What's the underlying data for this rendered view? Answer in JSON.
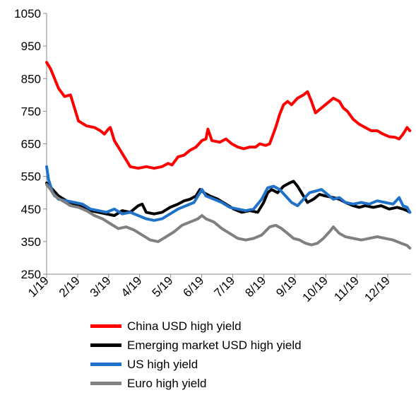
{
  "chart_data": {
    "type": "line",
    "title": "",
    "xlabel": "",
    "ylabel": "",
    "ylim": [
      250,
      1050
    ],
    "y_ticks": [
      "1050",
      "950",
      "850",
      "750",
      "650",
      "550",
      "450",
      "350",
      "250"
    ],
    "x_ticks": [
      "1/19",
      "2/19",
      "3/19",
      "4/19",
      "5/19",
      "6/19",
      "7/19",
      "8/19",
      "9/19",
      "10/19",
      "11/19",
      "12/19"
    ],
    "grid": false,
    "legend_position": "bottom",
    "series": [
      {
        "name": "China USD high yield",
        "color": "#ff0000",
        "values": [
          [
            0,
            900
          ],
          [
            0.1,
            880
          ],
          [
            0.2,
            850
          ],
          [
            0.3,
            820
          ],
          [
            0.45,
            795
          ],
          [
            0.6,
            800
          ],
          [
            0.7,
            760
          ],
          [
            0.8,
            720
          ],
          [
            1.0,
            705
          ],
          [
            1.2,
            700
          ],
          [
            1.35,
            690
          ],
          [
            1.45,
            680
          ],
          [
            1.55,
            695
          ],
          [
            1.6,
            700
          ],
          [
            1.7,
            660
          ],
          [
            1.8,
            640
          ],
          [
            1.9,
            620
          ],
          [
            2.0,
            600
          ],
          [
            2.1,
            580
          ],
          [
            2.3,
            575
          ],
          [
            2.5,
            580
          ],
          [
            2.7,
            575
          ],
          [
            2.9,
            580
          ],
          [
            3.05,
            590
          ],
          [
            3.15,
            585
          ],
          [
            3.3,
            610
          ],
          [
            3.45,
            615
          ],
          [
            3.6,
            630
          ],
          [
            3.75,
            640
          ],
          [
            3.9,
            660
          ],
          [
            4.0,
            665
          ],
          [
            4.05,
            695
          ],
          [
            4.15,
            660
          ],
          [
            4.35,
            655
          ],
          [
            4.5,
            665
          ],
          [
            4.65,
            650
          ],
          [
            4.8,
            640
          ],
          [
            4.95,
            635
          ],
          [
            5.1,
            640
          ],
          [
            5.25,
            640
          ],
          [
            5.35,
            650
          ],
          [
            5.5,
            645
          ],
          [
            5.6,
            650
          ],
          [
            5.75,
            700
          ],
          [
            5.85,
            740
          ],
          [
            5.95,
            770
          ],
          [
            6.05,
            780
          ],
          [
            6.15,
            770
          ],
          [
            6.3,
            790
          ],
          [
            6.45,
            800
          ],
          [
            6.55,
            810
          ],
          [
            6.65,
            780
          ],
          [
            6.75,
            745
          ],
          [
            6.9,
            760
          ],
          [
            7.05,
            775
          ],
          [
            7.2,
            790
          ],
          [
            7.35,
            780
          ],
          [
            7.45,
            760
          ],
          [
            7.55,
            750
          ],
          [
            7.7,
            725
          ],
          [
            7.85,
            710
          ],
          [
            8.0,
            700
          ],
          [
            8.15,
            690
          ],
          [
            8.3,
            690
          ],
          [
            8.45,
            680
          ],
          [
            8.6,
            672
          ],
          [
            8.75,
            670
          ],
          [
            8.85,
            665
          ],
          [
            8.95,
            680
          ],
          [
            9.05,
            700
          ],
          [
            9.12,
            690
          ]
        ]
      },
      {
        "name": "Emerging market USD high yield",
        "color": "#000000",
        "values": [
          [
            0,
            530
          ],
          [
            0.15,
            510
          ],
          [
            0.3,
            490
          ],
          [
            0.5,
            475
          ],
          [
            0.7,
            465
          ],
          [
            0.9,
            455
          ],
          [
            1.1,
            445
          ],
          [
            1.3,
            440
          ],
          [
            1.5,
            435
          ],
          [
            1.7,
            430
          ],
          [
            1.9,
            445
          ],
          [
            2.1,
            440
          ],
          [
            2.3,
            460
          ],
          [
            2.4,
            465
          ],
          [
            2.5,
            440
          ],
          [
            2.7,
            435
          ],
          [
            2.9,
            440
          ],
          [
            3.1,
            455
          ],
          [
            3.3,
            465
          ],
          [
            3.45,
            475
          ],
          [
            3.6,
            480
          ],
          [
            3.75,
            490
          ],
          [
            3.85,
            510
          ],
          [
            3.95,
            500
          ],
          [
            4.1,
            490
          ],
          [
            4.3,
            480
          ],
          [
            4.5,
            465
          ],
          [
            4.7,
            450
          ],
          [
            4.9,
            440
          ],
          [
            5.1,
            445
          ],
          [
            5.3,
            440
          ],
          [
            5.45,
            470
          ],
          [
            5.55,
            500
          ],
          [
            5.65,
            510
          ],
          [
            5.8,
            500
          ],
          [
            5.95,
            520
          ],
          [
            6.1,
            530
          ],
          [
            6.2,
            535
          ],
          [
            6.3,
            520
          ],
          [
            6.45,
            490
          ],
          [
            6.55,
            470
          ],
          [
            6.7,
            480
          ],
          [
            6.85,
            495
          ],
          [
            7.0,
            490
          ],
          [
            7.2,
            485
          ],
          [
            7.35,
            480
          ],
          [
            7.5,
            470
          ],
          [
            7.7,
            460
          ],
          [
            7.85,
            455
          ],
          [
            8.0,
            460
          ],
          [
            8.2,
            455
          ],
          [
            8.4,
            460
          ],
          [
            8.6,
            450
          ],
          [
            8.8,
            455
          ],
          [
            8.95,
            450
          ],
          [
            9.05,
            445
          ],
          [
            9.12,
            440
          ]
        ]
      },
      {
        "name": "US high yield",
        "color": "#1f72c8",
        "values": [
          [
            0,
            580
          ],
          [
            0.05,
            540
          ],
          [
            0.15,
            500
          ],
          [
            0.3,
            480
          ],
          [
            0.5,
            475
          ],
          [
            0.7,
            470
          ],
          [
            0.9,
            465
          ],
          [
            1.1,
            450
          ],
          [
            1.3,
            445
          ],
          [
            1.5,
            440
          ],
          [
            1.7,
            450
          ],
          [
            1.9,
            435
          ],
          [
            2.1,
            440
          ],
          [
            2.3,
            430
          ],
          [
            2.5,
            420
          ],
          [
            2.7,
            415
          ],
          [
            2.9,
            420
          ],
          [
            3.1,
            435
          ],
          [
            3.3,
            450
          ],
          [
            3.5,
            460
          ],
          [
            3.7,
            470
          ],
          [
            3.85,
            500
          ],
          [
            3.9,
            510
          ],
          [
            4.0,
            490
          ],
          [
            4.2,
            480
          ],
          [
            4.4,
            470
          ],
          [
            4.6,
            455
          ],
          [
            4.8,
            450
          ],
          [
            5.0,
            445
          ],
          [
            5.2,
            450
          ],
          [
            5.4,
            480
          ],
          [
            5.55,
            515
          ],
          [
            5.7,
            520
          ],
          [
            5.85,
            510
          ],
          [
            6.0,
            490
          ],
          [
            6.15,
            470
          ],
          [
            6.3,
            460
          ],
          [
            6.45,
            480
          ],
          [
            6.6,
            500
          ],
          [
            6.75,
            505
          ],
          [
            6.9,
            510
          ],
          [
            7.05,
            495
          ],
          [
            7.2,
            480
          ],
          [
            7.35,
            485
          ],
          [
            7.5,
            470
          ],
          [
            7.7,
            465
          ],
          [
            7.9,
            470
          ],
          [
            8.1,
            465
          ],
          [
            8.3,
            475
          ],
          [
            8.5,
            470
          ],
          [
            8.7,
            465
          ],
          [
            8.85,
            485
          ],
          [
            8.95,
            460
          ],
          [
            9.05,
            455
          ],
          [
            9.12,
            440
          ]
        ]
      },
      {
        "name": "Euro high yield",
        "color": "#808080",
        "values": [
          [
            0,
            525
          ],
          [
            0.1,
            510
          ],
          [
            0.2,
            490
          ],
          [
            0.4,
            475
          ],
          [
            0.6,
            460
          ],
          [
            0.8,
            455
          ],
          [
            1.0,
            445
          ],
          [
            1.2,
            430
          ],
          [
            1.4,
            420
          ],
          [
            1.6,
            405
          ],
          [
            1.8,
            390
          ],
          [
            2.0,
            395
          ],
          [
            2.2,
            385
          ],
          [
            2.4,
            370
          ],
          [
            2.6,
            355
          ],
          [
            2.8,
            350
          ],
          [
            3.0,
            365
          ],
          [
            3.2,
            380
          ],
          [
            3.4,
            400
          ],
          [
            3.6,
            410
          ],
          [
            3.8,
            420
          ],
          [
            3.9,
            430
          ],
          [
            4.0,
            420
          ],
          [
            4.2,
            410
          ],
          [
            4.4,
            390
          ],
          [
            4.6,
            375
          ],
          [
            4.8,
            360
          ],
          [
            5.0,
            355
          ],
          [
            5.2,
            360
          ],
          [
            5.4,
            370
          ],
          [
            5.6,
            395
          ],
          [
            5.75,
            400
          ],
          [
            5.9,
            390
          ],
          [
            6.05,
            375
          ],
          [
            6.2,
            360
          ],
          [
            6.35,
            355
          ],
          [
            6.5,
            345
          ],
          [
            6.65,
            340
          ],
          [
            6.8,
            345
          ],
          [
            6.95,
            360
          ],
          [
            7.1,
            380
          ],
          [
            7.2,
            395
          ],
          [
            7.35,
            375
          ],
          [
            7.5,
            365
          ],
          [
            7.7,
            360
          ],
          [
            7.9,
            355
          ],
          [
            8.1,
            360
          ],
          [
            8.3,
            365
          ],
          [
            8.5,
            360
          ],
          [
            8.7,
            355
          ],
          [
            8.9,
            345
          ],
          [
            9.05,
            338
          ],
          [
            9.12,
            330
          ]
        ]
      }
    ]
  }
}
